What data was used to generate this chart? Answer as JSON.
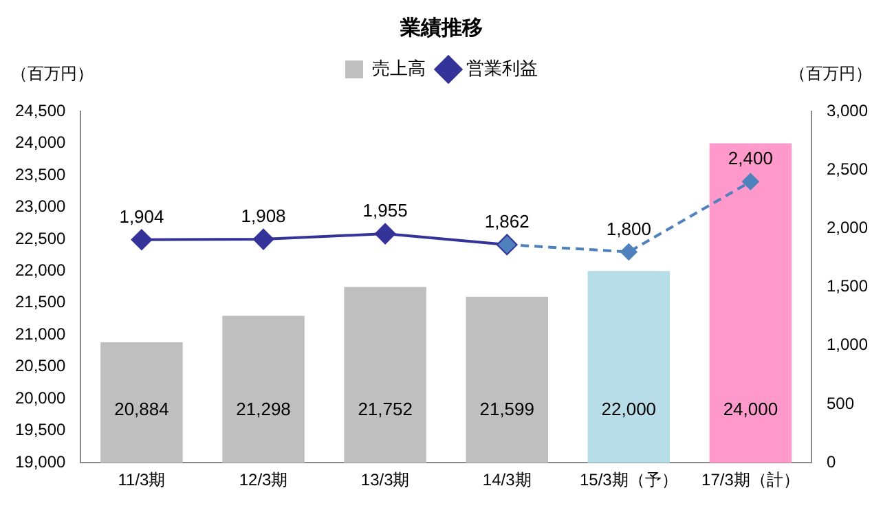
{
  "chart_data": {
    "type": "bar",
    "title": "業績推移",
    "ylabel": "（百万円）",
    "y2label": "（百万円）",
    "categories": [
      "11/3期",
      "12/3期",
      "13/3期",
      "14/3期",
      "15/3期（予）",
      "17/3期（計）"
    ],
    "series": [
      {
        "name": "売上高",
        "colors": [
          "#bfbfbf",
          "#bfbfbf",
          "#bfbfbf",
          "#bfbfbf",
          "#b7dee8",
          "#ff99cc"
        ],
        "color": "#bfbfbf",
        "values": [
          20884,
          21298,
          21752,
          21599,
          22000,
          24000
        ],
        "value_labels": [
          "20,884",
          "21,298",
          "21,752",
          "21,599",
          "22,000",
          "24,000"
        ]
      },
      {
        "name": "営業利益",
        "type": "line",
        "axis": "y2",
        "color": "#333399",
        "marker": "diamond",
        "line_style": "solid",
        "values": [
          1904,
          1908,
          1955,
          1862,
          null,
          null
        ],
        "value_labels": [
          "1,904",
          "1,908",
          "1,955",
          "1,862",
          null,
          null
        ]
      },
      {
        "type": "line",
        "axis": "y2",
        "color": "#4f81bd",
        "marker": "diamond",
        "line_style": "dashed",
        "values": [
          null,
          null,
          null,
          1862,
          1800,
          2400
        ],
        "value_labels": [
          null,
          null,
          null,
          null,
          "1,800",
          "2,400"
        ]
      }
    ],
    "ylim": [
      19000,
      24500
    ],
    "yticks": [
      {
        "value": 19000,
        "label": "19,000"
      },
      {
        "value": 19500,
        "label": "19,500"
      },
      {
        "value": 20000,
        "label": "20,000"
      },
      {
        "value": 20500,
        "label": "20,500"
      },
      {
        "value": 21000,
        "label": "21,000"
      },
      {
        "value": 21500,
        "label": "21,500"
      },
      {
        "value": 22000,
        "label": "22,000"
      },
      {
        "value": 22500,
        "label": "22,500"
      },
      {
        "value": 23000,
        "label": "23,000"
      },
      {
        "value": 23500,
        "label": "23,500"
      },
      {
        "value": 24000,
        "label": "24,000"
      },
      {
        "value": 24500,
        "label": "24,500"
      }
    ],
    "y2lim": [
      0,
      3000
    ],
    "y2ticks": [
      0,
      500,
      {
        "value": 1000,
        "label": "1,000"
      },
      {
        "value": 1500,
        "label": "1,500"
      },
      {
        "value": 2000,
        "label": "2,000"
      },
      {
        "value": 2500,
        "label": "2,500"
      },
      {
        "value": 3000,
        "label": "3,000"
      }
    ],
    "grid": false,
    "legend": "top"
  }
}
